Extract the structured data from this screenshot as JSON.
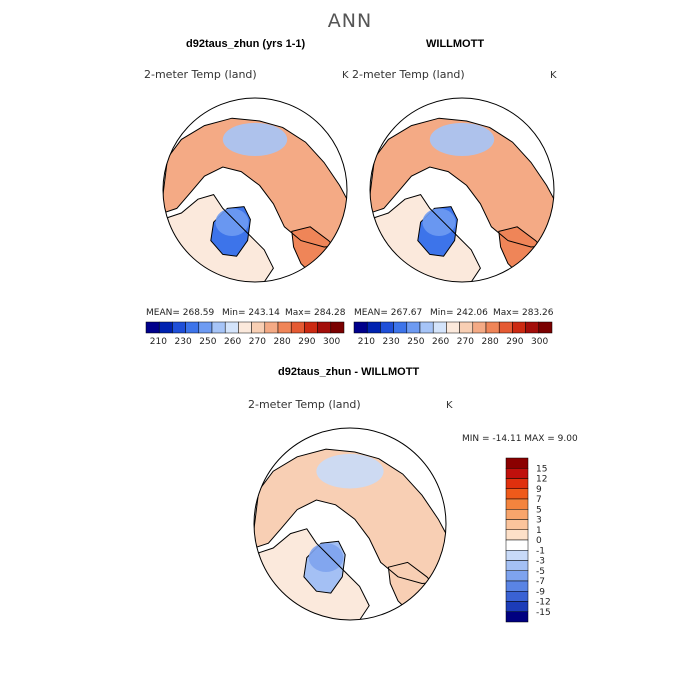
{
  "header": {
    "title": "ANN"
  },
  "chart_data": [
    {
      "type": "heatmap",
      "projection": "north-polar-stereographic",
      "title": "d92taus_zhun (yrs 1-1)",
      "variable": "2-meter Temp (land)",
      "units": "K",
      "stats": {
        "mean": "MEAN= 268.59",
        "min": "Min= 243.14",
        "max": "Max= 284.28"
      },
      "colorbar": {
        "orientation": "horizontal",
        "levels": [
          210,
          230,
          250,
          260,
          270,
          280,
          290,
          300
        ],
        "colors": [
          "#00008b",
          "#0022b0",
          "#1f4fd8",
          "#3d74ea",
          "#6e9bf2",
          "#a6c4f7",
          "#d4e4fb",
          "#fbe9dc",
          "#f8cfb4",
          "#f4aa85",
          "#ef8558",
          "#e55a33",
          "#cc2a12",
          "#a30e0a",
          "#7a0000"
        ]
      }
    },
    {
      "type": "heatmap",
      "projection": "north-polar-stereographic",
      "title": "WILLMOTT",
      "variable": "2-meter Temp (land)",
      "units": "K",
      "stats": {
        "mean": "MEAN= 267.67",
        "min": "Min= 242.06",
        "max": "Max= 283.26"
      },
      "colorbar": {
        "orientation": "horizontal",
        "levels": [
          210,
          230,
          250,
          260,
          270,
          280,
          290,
          300
        ],
        "colors": [
          "#00008b",
          "#0022b0",
          "#1f4fd8",
          "#3d74ea",
          "#6e9bf2",
          "#a6c4f7",
          "#d4e4fb",
          "#fbe9dc",
          "#f8cfb4",
          "#f4aa85",
          "#ef8558",
          "#e55a33",
          "#cc2a12",
          "#a30e0a",
          "#7a0000"
        ]
      }
    },
    {
      "type": "heatmap",
      "projection": "north-polar-stereographic",
      "title": "d92taus_zhun - WILLMOTT",
      "variable": "2-meter Temp (land)",
      "units": "K",
      "stats": {
        "minmax": "MIN = -14.11  MAX =    9.00"
      },
      "colorbar": {
        "orientation": "vertical",
        "levels": [
          15,
          12,
          9,
          7,
          5,
          3,
          1,
          0,
          -1,
          -3,
          -5,
          -7,
          -9,
          -12,
          -15
        ],
        "colors": [
          "#8b0000",
          "#c0100c",
          "#e0300e",
          "#ef5a1a",
          "#f4843e",
          "#f8a56c",
          "#fbc49c",
          "#fde0c8",
          "#ffffff",
          "#c8daf8",
          "#a4c0f4",
          "#7ea3ee",
          "#5a84e4",
          "#3a62d4",
          "#1c3cb8",
          "#000080"
        ]
      }
    }
  ]
}
